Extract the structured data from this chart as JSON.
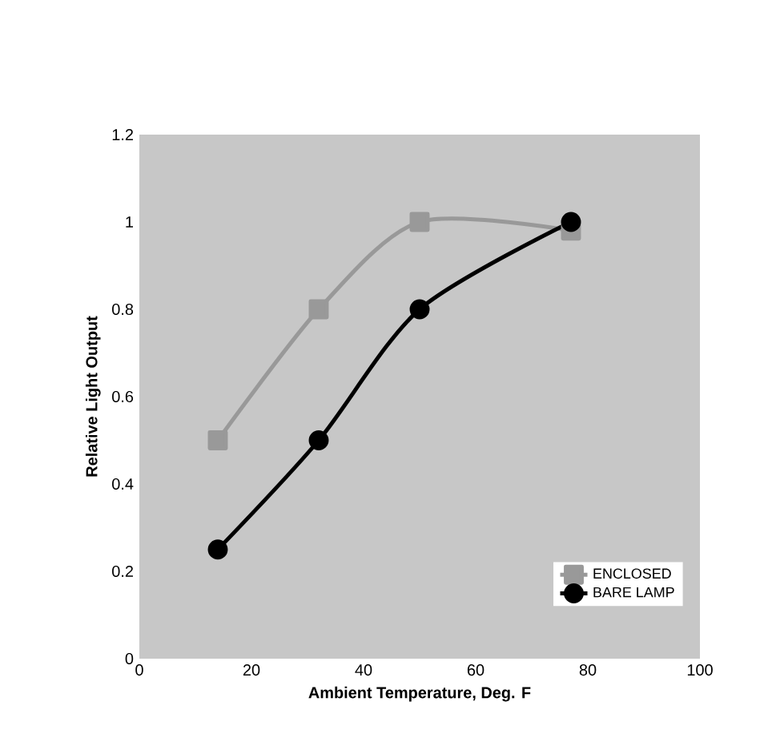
{
  "chart_data": {
    "type": "line",
    "xlabel": "Ambient Temperature, Deg. F",
    "ylabel": "Relative Light Output",
    "x": [
      14,
      32,
      50,
      77
    ],
    "series": [
      {
        "name": "ENCLOSED",
        "color": "#999999",
        "marker": "square",
        "values": [
          0.5,
          0.8,
          1.0,
          0.98
        ]
      },
      {
        "name": "BARE LAMP",
        "color": "#000000",
        "marker": "circle",
        "values": [
          0.25,
          0.5,
          0.8,
          1.0
        ]
      }
    ],
    "xlim": [
      0,
      100
    ],
    "xticks": [
      0,
      20,
      40,
      60,
      80,
      100
    ],
    "ylim": [
      0,
      1.2
    ],
    "yticks": [
      0,
      0.2,
      0.4,
      0.6,
      0.8,
      1,
      1.2
    ],
    "legend": "bottom right",
    "grid": false
  }
}
